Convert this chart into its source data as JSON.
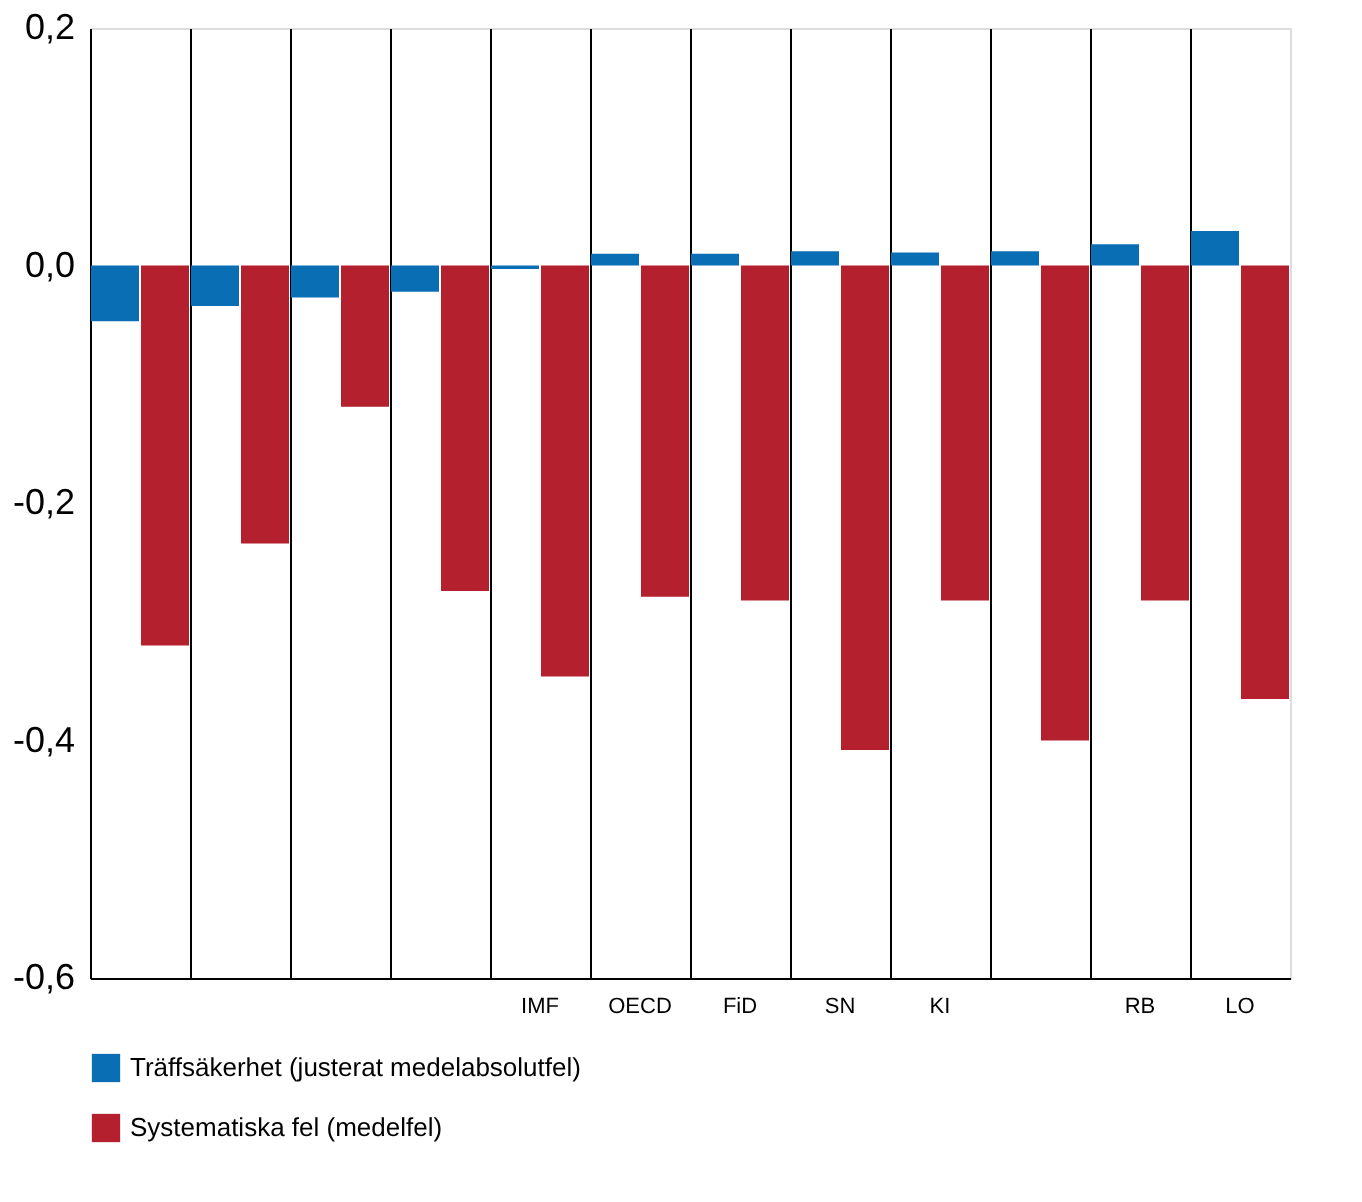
{
  "chart_data": {
    "type": "bar",
    "categories": [
      null,
      null,
      null,
      null,
      "IMF",
      "OECD",
      "FiD",
      "SN",
      "KI",
      null,
      "RB",
      "LO"
    ],
    "series": [
      {
        "name": "Träffsäkerhet (justerat medelabsolutfel)",
        "color": "#0a6eb4",
        "values": [
          -0.047,
          -0.034,
          -0.027,
          -0.022,
          -0.003,
          0.01,
          0.01,
          0.012,
          0.011,
          0.012,
          0.018,
          0.029
        ]
      },
      {
        "name": "Systematiska fel (medelfel)",
        "color": "#b5202e",
        "values": [
          -0.32,
          -0.234,
          -0.119,
          -0.274,
          -0.346,
          -0.279,
          -0.282,
          -0.408,
          -0.282,
          -0.4,
          -0.282,
          -0.365
        ]
      }
    ],
    "ylim": [
      -0.6,
      0.2
    ],
    "yticks": [
      {
        "value": -0.6,
        "label": "-0,6"
      },
      {
        "value": -0.4,
        "label": "-0,4"
      },
      {
        "value": -0.2,
        "label": "-0,2"
      },
      {
        "value": 0,
        "label": "0,0"
      },
      {
        "value": 0.2,
        "label": "0,2"
      }
    ],
    "grid": "x",
    "legend": "bottom"
  }
}
